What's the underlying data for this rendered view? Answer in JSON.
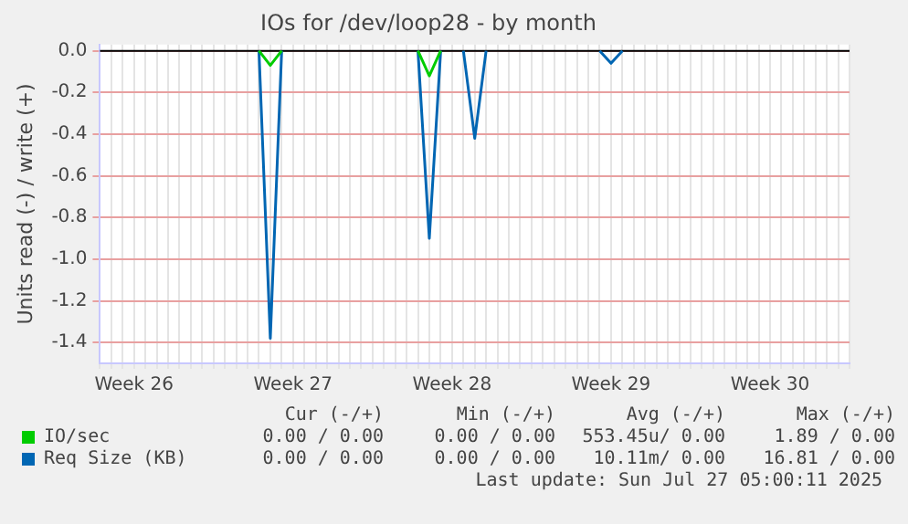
{
  "chart_data": {
    "type": "line",
    "title": "IOs for /dev/loop28 - by month",
    "ylabel": "Units read (-) / write (+)",
    "categories": [
      null,
      null,
      null,
      "Week 26",
      null,
      null,
      null,
      null,
      null,
      null,
      null,
      null,
      null,
      null,
      null,
      null,
      null,
      "Week 27",
      null,
      null,
      null,
      null,
      null,
      null,
      null,
      null,
      null,
      null,
      null,
      null,
      null,
      "Week 28",
      null,
      null,
      null,
      null,
      null,
      null,
      null,
      null,
      null,
      null,
      null,
      null,
      null,
      "Week 29",
      null,
      null,
      null,
      null,
      null,
      null,
      null,
      null,
      null,
      null,
      null,
      null,
      null,
      "Week 30",
      null,
      null,
      null,
      null,
      null,
      null,
      null
    ],
    "series": [
      {
        "name": "IO/sec",
        "color": "#00cc00",
        "values": [
          null,
          null,
          null,
          null,
          null,
          null,
          null,
          null,
          null,
          null,
          null,
          null,
          null,
          null,
          0,
          -0.07,
          0,
          null,
          null,
          null,
          null,
          null,
          null,
          null,
          null,
          null,
          null,
          null,
          0,
          -0.12,
          0,
          null,
          null,
          null,
          null,
          null,
          null,
          null,
          null,
          null,
          null,
          null,
          null,
          null,
          null,
          null,
          null,
          null,
          null,
          null,
          null,
          null,
          null,
          null,
          null,
          null,
          null,
          null,
          null,
          null,
          null,
          null,
          null,
          null,
          null,
          null,
          null
        ]
      },
      {
        "name": "Req Size (KB)",
        "color": "#0066b3",
        "values": [
          null,
          null,
          null,
          null,
          null,
          null,
          null,
          null,
          null,
          null,
          null,
          null,
          null,
          null,
          0,
          -1.38,
          0,
          null,
          null,
          null,
          null,
          null,
          null,
          null,
          null,
          null,
          null,
          null,
          0,
          -0.9,
          0,
          null,
          0,
          -0.42,
          0,
          null,
          null,
          null,
          null,
          null,
          null,
          null,
          null,
          null,
          0,
          -0.06,
          0,
          null,
          null,
          null,
          null,
          null,
          null,
          null,
          null,
          null,
          null,
          null,
          null,
          null,
          null,
          null,
          null,
          null,
          null,
          null,
          null
        ]
      }
    ],
    "ylim": [
      -1.5,
      0.03
    ],
    "yticks": [
      {
        "value": 0,
        "label": "0.0"
      },
      {
        "value": -0.2,
        "label": "-0.2"
      },
      {
        "value": -0.4,
        "label": "-0.4"
      },
      {
        "value": -0.6,
        "label": "-0.6"
      },
      {
        "value": -0.8,
        "label": "-0.8"
      },
      {
        "value": -1,
        "label": "-1.0"
      },
      {
        "value": -1.2,
        "label": "-1.2"
      },
      {
        "value": -1.4,
        "label": "-1.4"
      }
    ],
    "grid": true,
    "legend": "bottom",
    "marker": "none",
    "line_style": "solid",
    "ref_lines": [
      {
        "axis": "y",
        "value": 0,
        "color": "#000000"
      }
    ],
    "annotations": [
      "Cur (-/+)",
      "Min (-/+)",
      "Avg (-/+)",
      "Max (-/+)",
      "0.00 / 0.00",
      "0.00 / 0.00",
      "553.45u/ 0.00",
      "1.89 / 0.00",
      "0.00 / 0.00",
      "0.00 / 0.00",
      "10.11m/ 0.00",
      "16.81 / 0.00",
      "Last update: Sun Jul 27 05:00:11 2025"
    ]
  }
}
